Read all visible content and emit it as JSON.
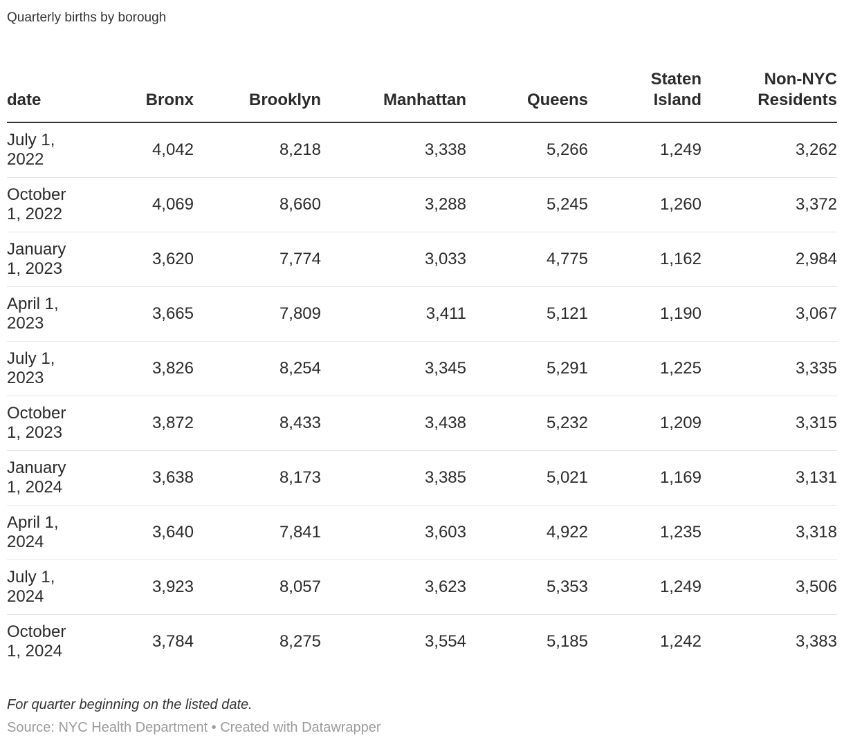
{
  "title": "Quarterly births by borough",
  "table": {
    "columns": [
      {
        "label": "date",
        "align": "left"
      },
      {
        "label": "Bronx",
        "align": "right"
      },
      {
        "label": "Brooklyn",
        "align": "right"
      },
      {
        "label": "Manhattan",
        "align": "right"
      },
      {
        "label": "Queens",
        "align": "right"
      },
      {
        "label": "Staten\nIsland",
        "align": "right"
      },
      {
        "label": "Non-NYC\nResidents",
        "align": "right"
      }
    ],
    "rows": [
      {
        "date": "July 1,\n2022",
        "values": [
          "4,042",
          "8,218",
          "3,338",
          "5,266",
          "1,249",
          "3,262"
        ]
      },
      {
        "date": "October\n1, 2022",
        "values": [
          "4,069",
          "8,660",
          "3,288",
          "5,245",
          "1,260",
          "3,372"
        ]
      },
      {
        "date": "January\n1, 2023",
        "values": [
          "3,620",
          "7,774",
          "3,033",
          "4,775",
          "1,162",
          "2,984"
        ]
      },
      {
        "date": "April 1,\n2023",
        "values": [
          "3,665",
          "7,809",
          "3,411",
          "5,121",
          "1,190",
          "3,067"
        ]
      },
      {
        "date": "July 1,\n2023",
        "values": [
          "3,826",
          "8,254",
          "3,345",
          "5,291",
          "1,225",
          "3,335"
        ]
      },
      {
        "date": "October\n1, 2023",
        "values": [
          "3,872",
          "8,433",
          "3,438",
          "5,232",
          "1,209",
          "3,315"
        ]
      },
      {
        "date": "January\n1, 2024",
        "values": [
          "3,638",
          "8,173",
          "3,385",
          "5,021",
          "1,169",
          "3,131"
        ]
      },
      {
        "date": "April 1,\n2024",
        "values": [
          "3,640",
          "7,841",
          "3,603",
          "4,922",
          "1,235",
          "3,318"
        ]
      },
      {
        "date": "July 1,\n2024",
        "values": [
          "3,923",
          "8,057",
          "3,623",
          "5,353",
          "1,249",
          "3,506"
        ]
      },
      {
        "date": "October\n1, 2024",
        "values": [
          "3,784",
          "8,275",
          "3,554",
          "5,185",
          "1,242",
          "3,383"
        ]
      }
    ]
  },
  "footer": {
    "note": "For quarter beginning on the listed date.",
    "source": "Source: NYC Health Department • Created with Datawrapper"
  },
  "colors": {
    "text": "#2b2b2b",
    "header_border": "#333333",
    "row_border": "#e4e4e4",
    "source_text": "#9b9b9b",
    "background": "#ffffff"
  },
  "chart_data": {
    "type": "table",
    "title": "Quarterly births by borough",
    "columns": [
      "date",
      "Bronx",
      "Brooklyn",
      "Manhattan",
      "Queens",
      "Staten Island",
      "Non-NYC Residents"
    ],
    "rows": [
      [
        "July 1, 2022",
        4042,
        8218,
        3338,
        5266,
        1249,
        3262
      ],
      [
        "October 1, 2022",
        4069,
        8660,
        3288,
        5245,
        1260,
        3372
      ],
      [
        "January 1, 2023",
        3620,
        7774,
        3033,
        4775,
        1162,
        2984
      ],
      [
        "April 1, 2023",
        3665,
        7809,
        3411,
        5121,
        1190,
        3067
      ],
      [
        "July 1, 2023",
        3826,
        8254,
        3345,
        5291,
        1225,
        3335
      ],
      [
        "October 1, 2023",
        3872,
        8433,
        3438,
        5232,
        1209,
        3315
      ],
      [
        "January 1, 2024",
        3638,
        8173,
        3385,
        5021,
        1169,
        3131
      ],
      [
        "April 1, 2024",
        3640,
        7841,
        3603,
        4922,
        1235,
        3318
      ],
      [
        "July 1, 2024",
        3923,
        8057,
        3623,
        5353,
        1249,
        3506
      ],
      [
        "October 1, 2024",
        3784,
        8275,
        3554,
        5185,
        1242,
        3383
      ]
    ],
    "note": "For quarter beginning on the listed date.",
    "source": "Source: NYC Health Department • Created with Datawrapper"
  }
}
